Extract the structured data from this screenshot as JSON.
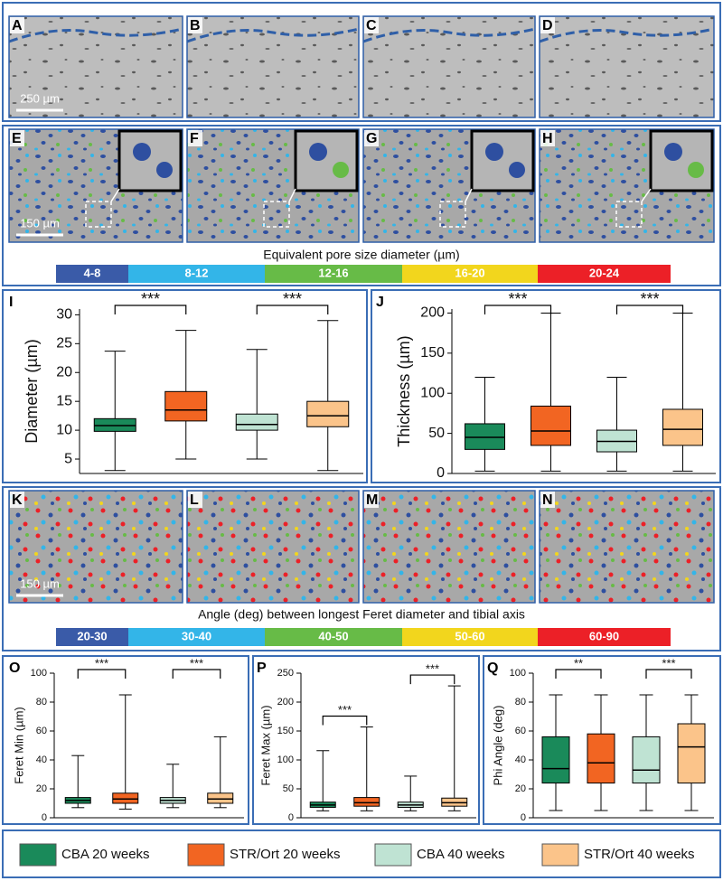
{
  "row1": {
    "labels": [
      "A",
      "B",
      "C",
      "D"
    ],
    "scale_bar": "250 µm"
  },
  "row2": {
    "labels": [
      "E",
      "F",
      "G",
      "H"
    ],
    "scale_bar": "150 µm",
    "colorbar": {
      "title": "Equivalent pore size diameter (µm)",
      "segments": [
        {
          "label": "4-8",
          "color": "#3a5ba8"
        },
        {
          "label": "8-12",
          "color": "#33b5e8"
        },
        {
          "label": "12-16",
          "color": "#67bb47"
        },
        {
          "label": "16-20",
          "color": "#f2d61d"
        },
        {
          "label": "20-24",
          "color": "#ec2027"
        }
      ]
    }
  },
  "row4": {
    "labels": [
      "K",
      "L",
      "M",
      "N"
    ],
    "scale_bar": "150 µm",
    "colorbar": {
      "title": "Angle (deg) between longest Feret diameter and tibial axis",
      "segments": [
        {
          "label": "20-30",
          "color": "#3a5ba8"
        },
        {
          "label": "30-40",
          "color": "#33b5e8"
        },
        {
          "label": "40-50",
          "color": "#67bb47"
        },
        {
          "label": "50-60",
          "color": "#f2d61d"
        },
        {
          "label": "60-90",
          "color": "#ec2027"
        }
      ]
    }
  },
  "legend": [
    {
      "name": "CBA 20 weeks",
      "color": "#1a8a5a"
    },
    {
      "name": "STR/Ort 20 weeks",
      "color": "#f26522"
    },
    {
      "name": "CBA 40 weeks",
      "color": "#bfe3d3"
    },
    {
      "name": "STR/Ort 40 weeks",
      "color": "#fbc48a"
    }
  ],
  "chart_data": [
    {
      "type": "box",
      "panel": "I",
      "ylabel": "Diameter (µm)",
      "ylim": [
        2.5,
        31
      ],
      "yticks": [
        5,
        10,
        15,
        20,
        25,
        30
      ],
      "boxes": [
        {
          "whislo": 3,
          "q1": 9.8,
          "median": 10.8,
          "q3": 12,
          "whishi": 23.7
        },
        {
          "whislo": 5,
          "q1": 11.6,
          "median": 13.5,
          "q3": 16.7,
          "whishi": 27.3
        },
        {
          "whislo": 5,
          "q1": 10,
          "median": 11,
          "q3": 12.8,
          "whishi": 24
        },
        {
          "whislo": 3,
          "q1": 10.6,
          "median": 12.5,
          "q3": 15,
          "whishi": 29
        }
      ],
      "brackets": [
        {
          "label": "***",
          "between": [
            0,
            1
          ]
        },
        {
          "label": "***",
          "between": [
            2,
            3
          ]
        }
      ]
    },
    {
      "type": "box",
      "panel": "J",
      "ylabel": "Thickness (µm)",
      "ylim": [
        0,
        205
      ],
      "yticks": [
        0,
        50,
        100,
        150,
        200
      ],
      "boxes": [
        {
          "whislo": 3,
          "q1": 30,
          "median": 45,
          "q3": 62,
          "whishi": 120
        },
        {
          "whislo": 3,
          "q1": 35,
          "median": 53,
          "q3": 84,
          "whishi": 200
        },
        {
          "whislo": 3,
          "q1": 27,
          "median": 40,
          "q3": 54,
          "whishi": 120
        },
        {
          "whislo": 3,
          "q1": 35,
          "median": 55,
          "q3": 80,
          "whishi": 200
        }
      ],
      "brackets": [
        {
          "label": "***",
          "between": [
            0,
            1
          ]
        },
        {
          "label": "***",
          "between": [
            2,
            3
          ]
        }
      ]
    },
    {
      "type": "box",
      "panel": "O",
      "ylabel": "Feret Min (µm)",
      "ylim": [
        0,
        100
      ],
      "yticks": [
        0,
        20,
        40,
        60,
        80,
        100
      ],
      "boxes": [
        {
          "whislo": 7,
          "q1": 10,
          "median": 12,
          "q3": 14,
          "whishi": 43
        },
        {
          "whislo": 6,
          "q1": 10,
          "median": 13,
          "q3": 17,
          "whishi": 85
        },
        {
          "whislo": 7,
          "q1": 10,
          "median": 12,
          "q3": 14,
          "whishi": 37
        },
        {
          "whislo": 7,
          "q1": 10,
          "median": 13,
          "q3": 17,
          "whishi": 56
        }
      ],
      "brackets": [
        {
          "label": "***",
          "between": [
            0,
            1
          ]
        },
        {
          "label": "***",
          "between": [
            2,
            3
          ]
        }
      ]
    },
    {
      "type": "box",
      "panel": "P",
      "ylabel": "Feret Max (µm)",
      "ylim": [
        0,
        250
      ],
      "yticks": [
        0,
        50,
        100,
        150,
        200,
        250
      ],
      "boxes": [
        {
          "whislo": 12,
          "q1": 18,
          "median": 22,
          "q3": 27,
          "whishi": 116
        },
        {
          "whislo": 12,
          "q1": 20,
          "median": 26,
          "q3": 35,
          "whishi": 157
        },
        {
          "whislo": 12,
          "q1": 18,
          "median": 22,
          "q3": 27,
          "whishi": 72
        },
        {
          "whislo": 12,
          "q1": 20,
          "median": 26,
          "q3": 34,
          "whishi": 228
        }
      ],
      "brackets": [
        {
          "label": "***",
          "between": [
            0,
            1
          ]
        },
        {
          "label": "***",
          "between": [
            2,
            3
          ]
        }
      ]
    },
    {
      "type": "box",
      "panel": "Q",
      "ylabel": "Phi Angle (deg)",
      "ylim": [
        0,
        100
      ],
      "yticks": [
        0,
        20,
        40,
        60,
        80,
        100
      ],
      "boxes": [
        {
          "whislo": 5,
          "q1": 24,
          "median": 34,
          "q3": 56,
          "whishi": 85
        },
        {
          "whislo": 5,
          "q1": 24,
          "median": 38,
          "q3": 58,
          "whishi": 85
        },
        {
          "whislo": 5,
          "q1": 24,
          "median": 33,
          "q3": 56,
          "whishi": 85
        },
        {
          "whislo": 5,
          "q1": 24,
          "median": 49,
          "q3": 65,
          "whishi": 85
        }
      ],
      "brackets": [
        {
          "label": "**",
          "between": [
            0,
            1
          ]
        },
        {
          "label": "***",
          "between": [
            2,
            3
          ]
        }
      ]
    }
  ]
}
